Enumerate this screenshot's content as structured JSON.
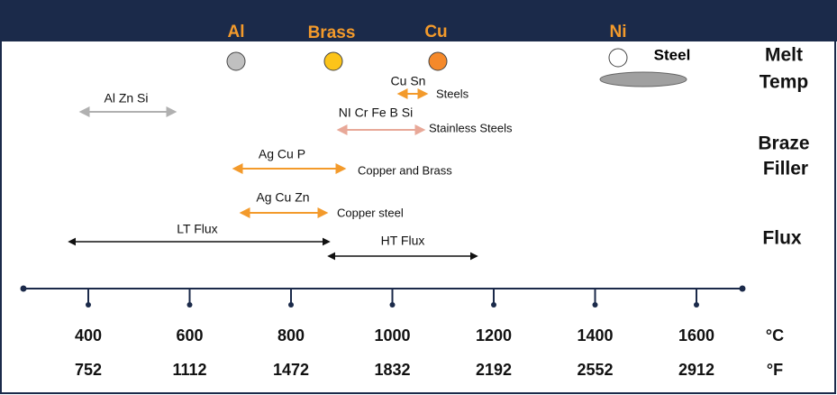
{
  "header": {
    "metals": [
      "Al",
      "Brass",
      "Cu",
      "Ni"
    ]
  },
  "melt": {
    "steel": "Steel"
  },
  "side_labels": {
    "melt": [
      "Melt",
      "Temp"
    ],
    "braze": [
      "Braze",
      "Filler"
    ],
    "flux": "Flux"
  },
  "fillers": [
    {
      "label": "Al Zn Si"
    },
    {
      "label": "Cu  Sn",
      "note": "Steels"
    },
    {
      "label": "NI Cr Fe B Si",
      "note": "Stainless Steels"
    },
    {
      "label": "Ag  Cu  P",
      "note": "Copper and Brass"
    },
    {
      "label": "Ag Cu Zn",
      "note": "Copper steel"
    }
  ],
  "fluxes": [
    "LT Flux",
    "HT Flux"
  ],
  "scale": {
    "celsius": [
      "400",
      "600",
      "800",
      "1000",
      "1200",
      "1400",
      "1600"
    ],
    "fahrenheit": [
      "752",
      "1112",
      "1472",
      "1832",
      "2192",
      "2552",
      "2912"
    ],
    "celsius_unit": "°C",
    "fahrenheit_unit": "°F"
  }
}
